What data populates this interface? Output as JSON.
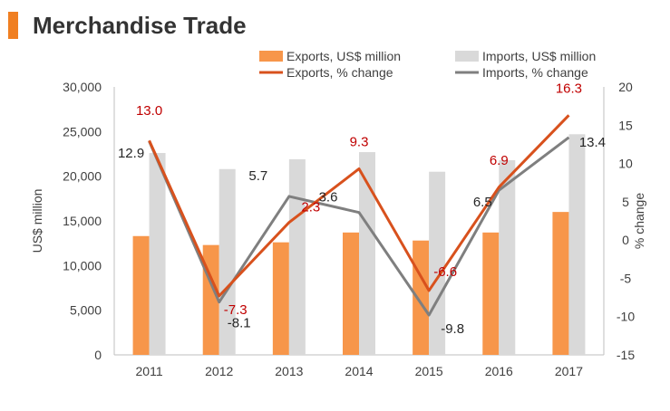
{
  "title": "Merchandise Trade",
  "colors": {
    "accent": "#F07F21",
    "exports_bar": "#F7964A",
    "imports_bar": "#D9D9D9",
    "exports_line": "#D8511D",
    "imports_line": "#7F7F7F",
    "label_red": "#C00000",
    "label_dark": "#262626",
    "axis": "#BFBFBF",
    "tick_text": "#3F3F3F"
  },
  "chart_data": {
    "type": "bar+line",
    "categories": [
      "2011",
      "2012",
      "2013",
      "2014",
      "2015",
      "2016",
      "2017"
    ],
    "series": [
      {
        "name": "Exports, US$ million",
        "kind": "bar",
        "axis": "left",
        "values": [
          13300,
          12300,
          12600,
          13700,
          12800,
          13700,
          16000
        ]
      },
      {
        "name": "Imports, US$ million",
        "kind": "bar",
        "axis": "left",
        "values": [
          22600,
          20800,
          21900,
          22700,
          20500,
          21800,
          24700
        ]
      },
      {
        "name": "Exports, % change",
        "kind": "line",
        "axis": "right",
        "values": [
          13.0,
          -7.3,
          2.3,
          9.3,
          -6.6,
          6.9,
          16.3
        ],
        "labels": [
          "13.0",
          "-7.3",
          "2.3",
          "9.3",
          "-6.6",
          "6.9",
          "16.3"
        ]
      },
      {
        "name": "Imports, % change",
        "kind": "line",
        "axis": "right",
        "values": [
          12.9,
          -8.1,
          5.7,
          3.6,
          -9.8,
          6.5,
          13.4
        ],
        "labels": [
          "12.9",
          "-8.1",
          "5.7",
          "3.6",
          "-9.8",
          "6.5",
          "13.4"
        ]
      }
    ],
    "ylabel": "US$ million",
    "y2label": "% change",
    "ylim": [
      0,
      30000
    ],
    "y2lim": [
      -15,
      20
    ],
    "yticks": [
      "0",
      "5,000",
      "10,000",
      "15,000",
      "20,000",
      "25,000",
      "30,000"
    ],
    "y2ticks": [
      "-15",
      "-10",
      "-5",
      "0",
      "5",
      "10",
      "15",
      "20"
    ],
    "legend_position": "top",
    "grid": false
  }
}
